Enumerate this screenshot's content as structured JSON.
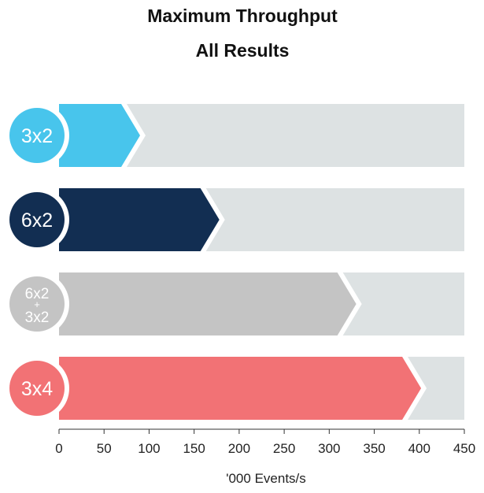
{
  "chart_data": {
    "type": "bar",
    "orientation": "horizontal",
    "title": "Maximum Throughput",
    "subtitle": "All Results",
    "xlabel": "'000 Events/s",
    "ylabel": "",
    "xlim": [
      0,
      450
    ],
    "x_ticks": [
      0,
      50,
      100,
      150,
      200,
      250,
      300,
      350,
      400,
      450
    ],
    "grid": false,
    "legend": "none",
    "background_bar_color": "#dde2e3",
    "categories": [
      "3x2",
      "6x2",
      "6x2 + 3x2",
      "3x4"
    ],
    "bars": [
      {
        "label": "3x2",
        "value": 90,
        "color": "#48c5ec"
      },
      {
        "label": "6x2",
        "value": 178,
        "color": "#122e52"
      },
      {
        "label": {
          "top": "6x2",
          "middle": "+",
          "bottom": "3x2"
        },
        "value": 330,
        "color": "#c4c4c4"
      },
      {
        "label": "3x4",
        "value": 402,
        "color": "#f27275"
      }
    ]
  }
}
